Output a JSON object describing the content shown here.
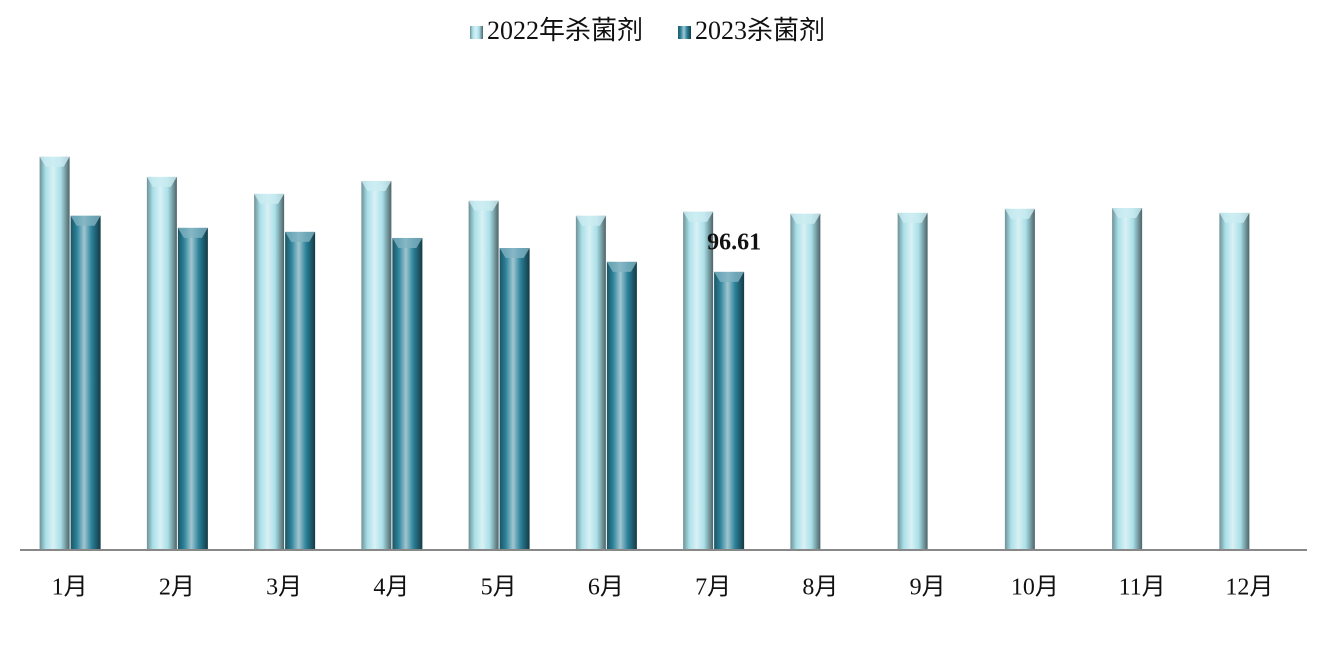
{
  "chart_data": {
    "type": "bar",
    "categories": [
      "1月",
      "2月",
      "3月",
      "4月",
      "5月",
      "6月",
      "7月",
      "8月",
      "9月",
      "10月",
      "11月",
      "12月"
    ],
    "series": [
      {
        "name": "2022年杀菌剂",
        "color": "#a9dfe8",
        "values": [
          136.6,
          129.6,
          123.7,
          128.2,
          121.3,
          116.1,
          117.5,
          116.8,
          117.1,
          118.5,
          118.8,
          117.1
        ]
      },
      {
        "name": "2023杀菌剂",
        "color": "#2b8199",
        "values": [
          116.1,
          111.9,
          110.5,
          108.4,
          104.9,
          100.1,
          96.61,
          null,
          null,
          null,
          null,
          null
        ],
        "value_labels": [
          null,
          null,
          null,
          null,
          null,
          null,
          "96.61",
          null,
          null,
          null,
          null,
          null
        ]
      }
    ],
    "ylim": [
      0,
      140
    ]
  }
}
